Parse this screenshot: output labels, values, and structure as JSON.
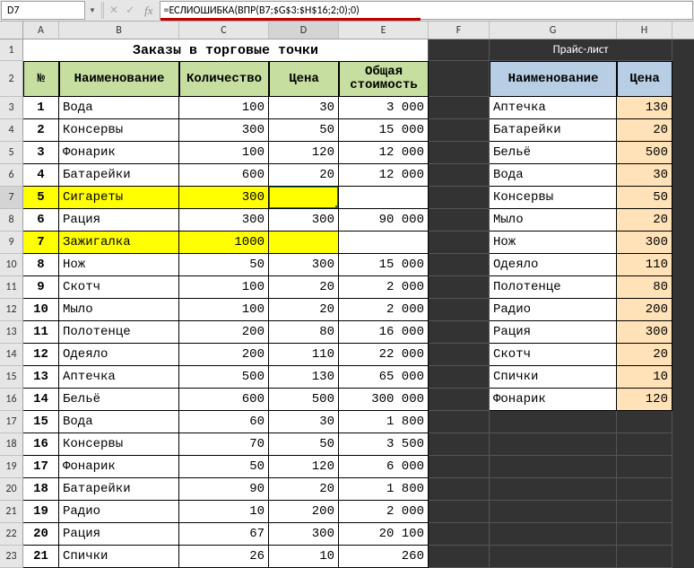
{
  "formula_bar": {
    "cell_ref": "D7",
    "formula": "=ЕСЛИОШИБКА(ВПР(B7;$G$3:$H$16;2;0);0)"
  },
  "col_headers": [
    "A",
    "B",
    "C",
    "D",
    "E",
    "F",
    "G",
    "H"
  ],
  "row_headers": [
    "1",
    "2",
    "3",
    "4",
    "5",
    "6",
    "7",
    "8",
    "9",
    "10",
    "11",
    "12",
    "13",
    "14",
    "15",
    "16",
    "17",
    "18",
    "19",
    "20",
    "21",
    "22",
    "23"
  ],
  "titles": {
    "orders": "Заказы в торговые точки",
    "price_list": "Прайс-лист"
  },
  "orders_headers": {
    "num": "№",
    "name": "Наименование",
    "qty": "Количество",
    "price": "Цена",
    "total": "Общая стоимость"
  },
  "price_headers": {
    "name": "Наименование",
    "price": "Цена"
  },
  "orders": [
    {
      "n": "1",
      "name": "Вода",
      "qty": "100",
      "price": "30",
      "total": "3 000",
      "hl": false
    },
    {
      "n": "2",
      "name": "Консервы",
      "qty": "300",
      "price": "50",
      "total": "15 000",
      "hl": false
    },
    {
      "n": "3",
      "name": "Фонарик",
      "qty": "100",
      "price": "120",
      "total": "12 000",
      "hl": false
    },
    {
      "n": "4",
      "name": "Батарейки",
      "qty": "600",
      "price": "20",
      "total": "12 000",
      "hl": false
    },
    {
      "n": "5",
      "name": "Сигареты",
      "qty": "300",
      "price": "",
      "total": "",
      "hl": true,
      "active": true
    },
    {
      "n": "6",
      "name": "Рация",
      "qty": "300",
      "price": "300",
      "total": "90 000",
      "hl": false
    },
    {
      "n": "7",
      "name": "Зажигалка",
      "qty": "1000",
      "price": "",
      "total": "",
      "hl": true
    },
    {
      "n": "8",
      "name": "Нож",
      "qty": "50",
      "price": "300",
      "total": "15 000",
      "hl": false
    },
    {
      "n": "9",
      "name": "Скотч",
      "qty": "100",
      "price": "20",
      "total": "2 000",
      "hl": false
    },
    {
      "n": "10",
      "name": "Мыло",
      "qty": "100",
      "price": "20",
      "total": "2 000",
      "hl": false
    },
    {
      "n": "11",
      "name": "Полотенце",
      "qty": "200",
      "price": "80",
      "total": "16 000",
      "hl": false
    },
    {
      "n": "12",
      "name": "Одеяло",
      "qty": "200",
      "price": "110",
      "total": "22 000",
      "hl": false
    },
    {
      "n": "13",
      "name": "Аптечка",
      "qty": "500",
      "price": "130",
      "total": "65 000",
      "hl": false
    },
    {
      "n": "14",
      "name": "Бельё",
      "qty": "600",
      "price": "500",
      "total": "300 000",
      "hl": false
    },
    {
      "n": "15",
      "name": "Вода",
      "qty": "60",
      "price": "30",
      "total": "1 800",
      "hl": false
    },
    {
      "n": "16",
      "name": "Консервы",
      "qty": "70",
      "price": "50",
      "total": "3 500",
      "hl": false
    },
    {
      "n": "17",
      "name": "Фонарик",
      "qty": "50",
      "price": "120",
      "total": "6 000",
      "hl": false
    },
    {
      "n": "18",
      "name": "Батарейки",
      "qty": "90",
      "price": "20",
      "total": "1 800",
      "hl": false
    },
    {
      "n": "19",
      "name": "Радио",
      "qty": "10",
      "price": "200",
      "total": "2 000",
      "hl": false
    },
    {
      "n": "20",
      "name": "Рация",
      "qty": "67",
      "price": "300",
      "total": "20 100",
      "hl": false
    },
    {
      "n": "21",
      "name": "Спички",
      "qty": "26",
      "price": "10",
      "total": "260",
      "hl": false
    }
  ],
  "price_list": [
    {
      "name": "Аптечка",
      "price": "130"
    },
    {
      "name": "Батарейки",
      "price": "20"
    },
    {
      "name": "Бельё",
      "price": "500"
    },
    {
      "name": "Вода",
      "price": "30"
    },
    {
      "name": "Консервы",
      "price": "50"
    },
    {
      "name": "Мыло",
      "price": "20"
    },
    {
      "name": "Нож",
      "price": "300"
    },
    {
      "name": "Одеяло",
      "price": "110"
    },
    {
      "name": "Полотенце",
      "price": "80"
    },
    {
      "name": "Радио",
      "price": "200"
    },
    {
      "name": "Рация",
      "price": "300"
    },
    {
      "name": "Скотч",
      "price": "20"
    },
    {
      "name": "Спички",
      "price": "10"
    },
    {
      "name": "Фонарик",
      "price": "120"
    }
  ],
  "colors": {
    "header_green": "#c6de9f",
    "header_blue": "#b8cee4",
    "highlight_yellow": "#ffff00",
    "price_orange": "#ffe2b7",
    "grid_bg": "#333333",
    "underline_red": "#c00000"
  }
}
